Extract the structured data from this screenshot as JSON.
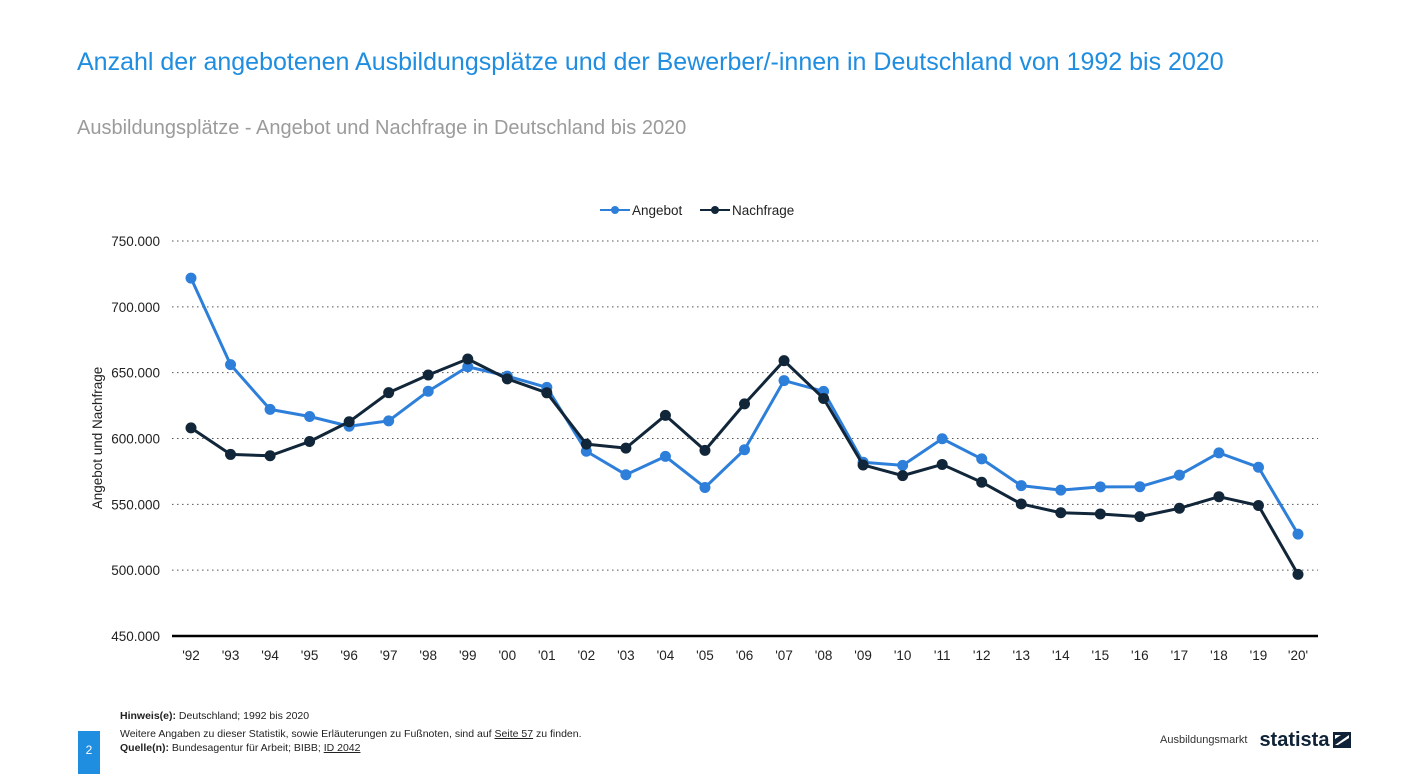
{
  "header": {
    "title": "Anzahl der angebotenen Ausbildungsplätze und der Bewerber/-innen in Deutschland von 1992 bis 2020",
    "subtitle": "Ausbildungsplätze - Angebot und Nachfrage in Deutschland bis 2020"
  },
  "colors": {
    "accent": "#1f8de0",
    "series_angebot": "#2e7fd9",
    "series_nachfrage": "#12263a",
    "gridline": "#555555",
    "axis": "#000000"
  },
  "chart_data": {
    "type": "line",
    "ylabel": "Angebot und Nachfrage",
    "xlabel": "",
    "ylim": [
      450000,
      750000
    ],
    "yticks": [
      450000,
      500000,
      550000,
      600000,
      650000,
      700000,
      750000
    ],
    "ytick_labels": [
      "450.000",
      "500.000",
      "550.000",
      "600.000",
      "650.000",
      "700.000",
      "750.000"
    ],
    "grid": "horizontal-dotted",
    "legend_position": "top-center",
    "categories": [
      "'92",
      "'93",
      "'94",
      "'95",
      "'96",
      "'97",
      "'98",
      "'99",
      "'00",
      "'01",
      "'02",
      "'03",
      "'04",
      "'05",
      "'06",
      "'07",
      "'08",
      "'09",
      "'10",
      "'11",
      "'12",
      "'13",
      "'14",
      "'15",
      "'16",
      "'17",
      "'18",
      "'19",
      "'20'"
    ],
    "series": [
      {
        "name": "Angebot",
        "color": "#2e7fd9",
        "values": [
          721800,
          656100,
          622100,
          616700,
          609300,
          613400,
          635900,
          654500,
          647400,
          638800,
          590300,
          572500,
          586400,
          562800,
          591500,
          644000,
          635800,
          582000,
          579600,
          599800,
          584500,
          564200,
          560800,
          563300,
          563400,
          572200,
          589100,
          578200,
          527400
        ]
      },
      {
        "name": "Nachfrage",
        "color": "#12263a",
        "values": [
          608100,
          587900,
          586900,
          597700,
          612700,
          634800,
          648200,
          660400,
          645300,
          634700,
          595700,
          592700,
          617600,
          591000,
          626300,
          659100,
          630400,
          579900,
          571800,
          580300,
          566800,
          550300,
          543600,
          542700,
          540700,
          547000,
          555800,
          549100,
          496800
        ]
      }
    ]
  },
  "footer": {
    "hinweis_label": "Hinweis(e):",
    "hinweis_text": " Deutschland; 1992 bis 2020",
    "weitere_text": "Weitere Angaben zu dieser Statistik, sowie Erläuterungen zu Fußnoten, sind auf ",
    "weitere_link": "Seite 57",
    "weitere_suffix": " zu finden.",
    "quelle_label": "Quelle(n):",
    "quelle_text": " Bundesagentur für Arbeit; BIBB; ",
    "quelle_link": "ID 2042"
  },
  "page_number": "2",
  "brand": {
    "section": "Ausbildungsmarkt",
    "logo": "statista",
    "logo_icon": "statista-logo-icon"
  }
}
